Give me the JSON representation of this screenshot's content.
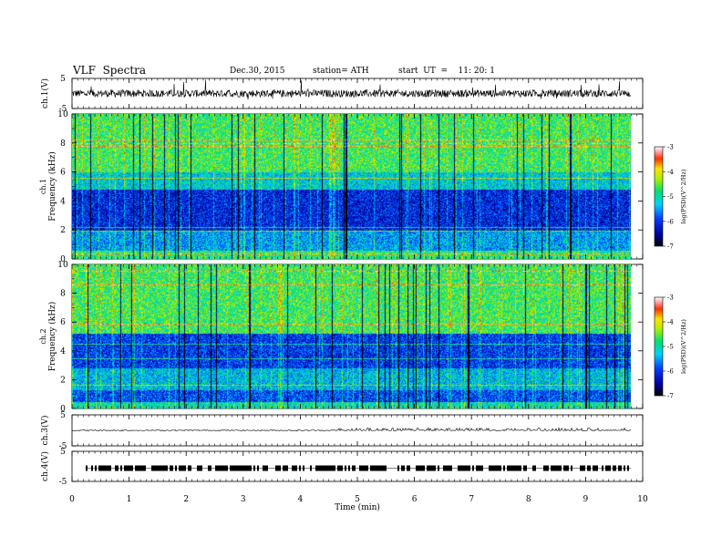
{
  "header": {
    "title": "VLF  Spectra",
    "date": "Dec.30, 2015",
    "station": "station= ATH",
    "start": "start  UT  =    11: 20: 1"
  },
  "chart_data": [
    {
      "type": "line",
      "ylabel": "ch.1(V)",
      "ylim": [
        -5,
        5
      ],
      "yticks": [
        "5",
        "-5"
      ],
      "description_level": 0
    },
    {
      "type": "heatmap",
      "ylabel": "Frequency (kHz)",
      "channel": "ch.1",
      "ylim": [
        0,
        10
      ],
      "yticks": [
        "0",
        "2",
        "4",
        "6",
        "8",
        "10"
      ],
      "colorbar": {
        "label": "log(PSD)(V^2/Hz)",
        "range": [
          -7,
          -3
        ],
        "ticks": [
          "-7",
          "-6",
          "-5",
          "-4",
          "-3"
        ]
      }
    },
    {
      "type": "heatmap",
      "ylabel": "Frequency (kHz)",
      "channel": "ch.2",
      "ylim": [
        0,
        10
      ],
      "yticks": [
        "0",
        "2",
        "4",
        "6",
        "8",
        "10"
      ],
      "colorbar": {
        "label": "log(PSD)(V^2/Hz)",
        "range": [
          -7,
          -3
        ],
        "ticks": [
          "-7",
          "-6",
          "-5",
          "-4",
          "-3"
        ]
      }
    },
    {
      "type": "line",
      "ylabel": "ch.3(V)",
      "ylim": [
        -5,
        5
      ],
      "yticks": [
        "5",
        "-5"
      ]
    },
    {
      "type": "line",
      "ylabel": "ch.4(V)",
      "ylim": [
        -5,
        5
      ],
      "yticks": [
        "5",
        "-5"
      ]
    }
  ],
  "xaxis": {
    "label": "Time  (min)",
    "range": [
      0,
      10
    ],
    "ticks": [
      "0",
      "1",
      "2",
      "3",
      "4",
      "5",
      "6",
      "7",
      "8",
      "9",
      "10"
    ]
  }
}
